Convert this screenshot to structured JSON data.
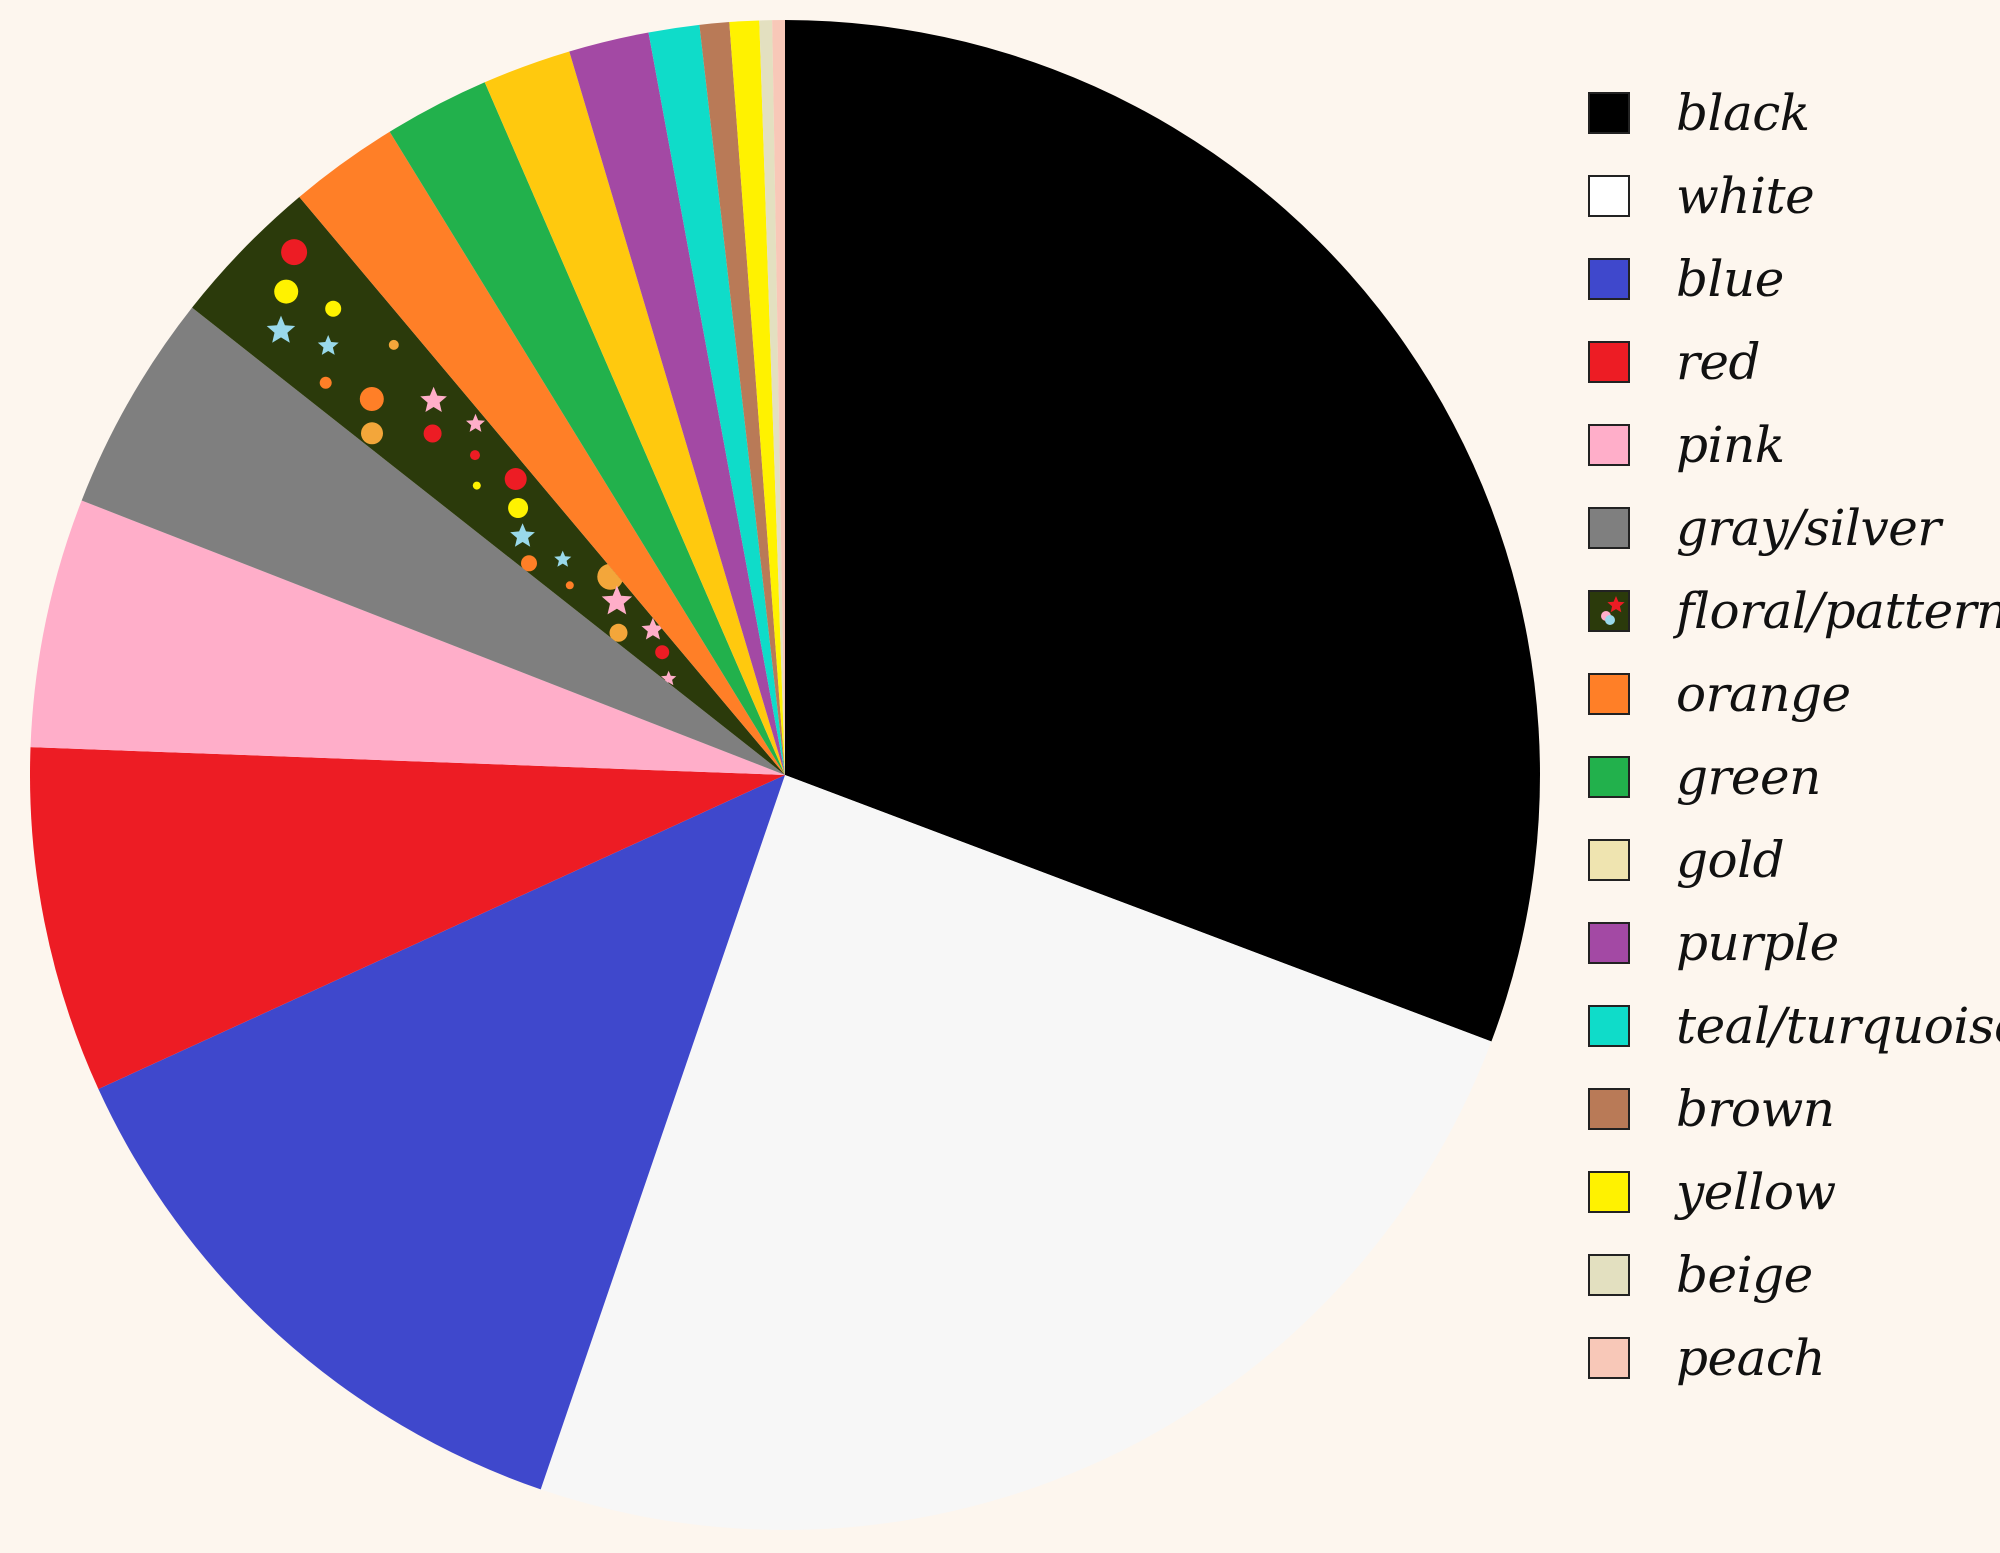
{
  "chart_data": {
    "type": "pie",
    "start": "12 o'clock",
    "direction": "clockwise",
    "legend_position": "right",
    "slices": [
      {
        "label": "black",
        "value": 34.0,
        "color": "#000000"
      },
      {
        "label": "white",
        "value": 27.1,
        "color": "#f7f7f7"
      },
      {
        "label": "blue",
        "value": 14.3,
        "color": "#3f48cc"
      },
      {
        "label": "red",
        "value": 8.2,
        "color": "#ed1c24"
      },
      {
        "label": "pink",
        "value": 5.9,
        "color": "#ffaec9"
      },
      {
        "label": "gray/silver",
        "value": 5.2,
        "color": "#7f7f7f"
      },
      {
        "label": "floral/pattern",
        "value": 3.6,
        "color": "#2b3a0b",
        "pattern": true
      },
      {
        "label": "orange",
        "value": 2.6,
        "color": "#ff7f27"
      },
      {
        "label": "green",
        "value": 2.5,
        "color": "#22b14c"
      },
      {
        "label": "gold",
        "value": 2.1,
        "color": "#ffc90e"
      },
      {
        "label": "purple",
        "value": 1.9,
        "color": "#a349a4"
      },
      {
        "label": "teal/turquoise",
        "value": 1.2,
        "color": "#0fdcc9"
      },
      {
        "label": "brown",
        "value": 0.7,
        "color": "#b97a57"
      },
      {
        "label": "yellow",
        "value": 0.7,
        "color": "#fff200"
      },
      {
        "label": "beige",
        "value": 0.3,
        "color": "#e3e0c0"
      },
      {
        "label": "peach",
        "value": 0.3,
        "color": "#f8c8b8"
      }
    ],
    "legend": [
      {
        "label": "black",
        "color": "#000000"
      },
      {
        "label": "white",
        "color": "#ffffff"
      },
      {
        "label": "blue",
        "color": "#3f48cc"
      },
      {
        "label": "red",
        "color": "#ed1c24"
      },
      {
        "label": "pink",
        "color": "#ffaec9"
      },
      {
        "label": "gray/silver",
        "color": "#7f7f7f"
      },
      {
        "label": "floral/pattern",
        "color": "#2b3a0b",
        "pattern": true
      },
      {
        "label": "orange",
        "color": "#ff7f27"
      },
      {
        "label": "green",
        "color": "#22b14c"
      },
      {
        "label": "gold",
        "color": "#efe4b0"
      },
      {
        "label": "purple",
        "color": "#a349a4"
      },
      {
        "label": "teal/turquoise",
        "color": "#0fdcc9"
      },
      {
        "label": "brown",
        "color": "#b97a57"
      },
      {
        "label": "yellow",
        "color": "#fff200"
      },
      {
        "label": "beige",
        "color": "#e3e0c0"
      },
      {
        "label": "peach",
        "color": "#f8c8b8"
      }
    ],
    "background_color": "#fdf6ee"
  }
}
